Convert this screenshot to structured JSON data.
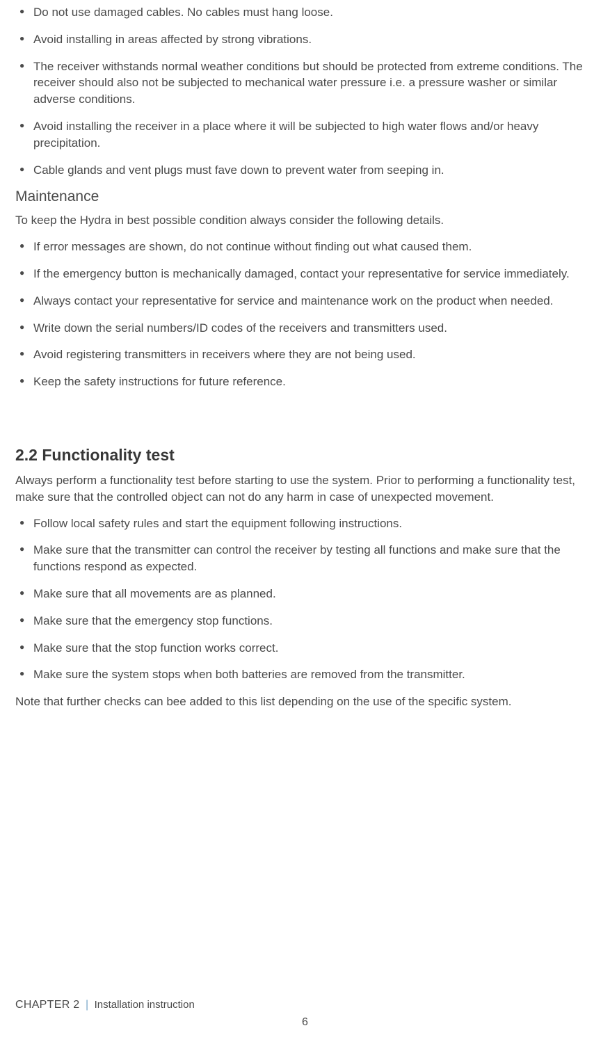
{
  "installation_list": [
    "Do not use damaged cables. No cables must hang loose.",
    "Avoid installing in areas affected by strong vibrations.",
    "The receiver withstands normal weather conditions but should be protected from extreme conditions. The receiver should also not be subjected to mechanical water pressure i.e. a pressure washer or similar adverse conditions.",
    "Avoid installing the receiver in a place where it will be subjected to high water flows and/or heavy precipitation.",
    "Cable glands and vent plugs must fave down to prevent water from seeping in."
  ],
  "maintenance": {
    "heading": "Maintenance",
    "intro": "To keep the Hydra in best possible condition always consider the following details.",
    "items": [
      "If error messages are shown, do not continue without finding out what caused them.",
      "If the emergency button is mechanically damaged, contact your representative for service immediately.",
      "Always contact your representative for service and maintenance work on the product when needed.",
      "Write down the serial numbers/ID codes of the receivers and transmitters used.",
      "Avoid registering transmitters in receivers where they are not being used.",
      "Keep the safety instructions for future reference."
    ]
  },
  "functionality_test": {
    "heading": "2.2 Functionality test",
    "intro": "Always perform a functionality test before starting to use the system. Prior to performing a functionality test, make sure that the controlled object can not do any harm in case of unexpected movement.",
    "items": [
      "Follow local safety rules and start the equipment following instructions.",
      "Make sure that the transmitter can control the receiver by testing all functions and make sure that the functions respond as expected.",
      "Make sure that all movements are as planned.",
      "Make sure that the emergency stop functions.",
      "Make sure that the stop function works correct.",
      "Make sure the system stops when both batteries are removed from the transmitter."
    ],
    "note": "Note that further checks can bee added to this list depending on the use of the specific system."
  },
  "footer": {
    "chapter": "CHAPTER 2",
    "title": "Installation instruction",
    "page": "6"
  }
}
